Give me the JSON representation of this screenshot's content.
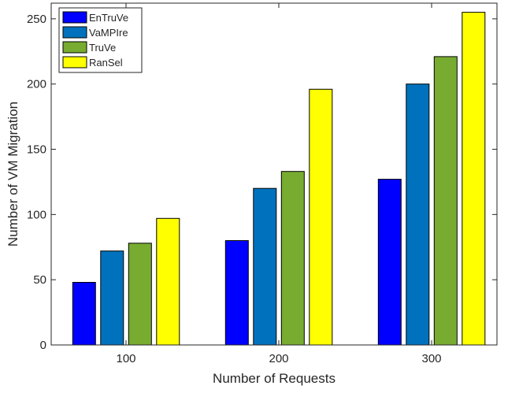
{
  "chart_data": {
    "type": "bar",
    "categories": [
      "100",
      "200",
      "300"
    ],
    "series": [
      {
        "name": "EnTruVe",
        "color": "#0000FF",
        "values": [
          48,
          80,
          127
        ]
      },
      {
        "name": "VaMPIre",
        "color": "#0072BD",
        "values": [
          72,
          120,
          200
        ]
      },
      {
        "name": "TruVe",
        "color": "#77AC30",
        "values": [
          78,
          133,
          221
        ]
      },
      {
        "name": "RanSel",
        "color": "#FFFF00",
        "values": [
          97,
          196,
          255
        ]
      }
    ],
    "xlabel": "Number of Requests",
    "ylabel": "Number of VM Migration",
    "ylim": [
      0,
      262
    ],
    "yticks": [
      0,
      50,
      100,
      150,
      200,
      250
    ],
    "grid": false,
    "legend": {
      "placement": "top-left"
    }
  }
}
